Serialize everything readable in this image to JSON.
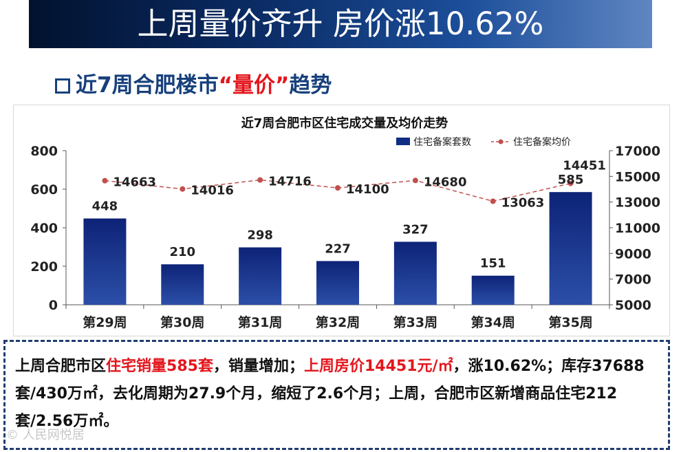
{
  "banner": {
    "title": "上周量价齐升 房价涨10.62%"
  },
  "section": {
    "prefix": "近7周合肥楼市",
    "highlight": "“量价”",
    "suffix": "趋势"
  },
  "chart_data": {
    "type": "bar+line",
    "title": "近7周合肥市区住宅成交量及均价走势",
    "categories": [
      "第29周",
      "第30周",
      "第31周",
      "第32周",
      "第33周",
      "第34周",
      "第35周"
    ],
    "series": [
      {
        "name": "住宅备案套数",
        "type": "bar",
        "axis": "left",
        "values": [
          448,
          210,
          298,
          227,
          327,
          151,
          585
        ],
        "color": "#0f2d82"
      },
      {
        "name": "住宅备案均价",
        "type": "line",
        "axis": "right",
        "values": [
          14663,
          14016,
          14716,
          14100,
          14680,
          13063,
          14451
        ],
        "color": "#c0504d"
      }
    ],
    "y_left": {
      "min": 0,
      "max": 800,
      "ticks": [
        0,
        200,
        400,
        600,
        800
      ]
    },
    "y_right": {
      "min": 5000,
      "max": 17000,
      "ticks": [
        5000,
        7000,
        9000,
        11000,
        13000,
        15000,
        17000
      ]
    },
    "legend_position": "top-right",
    "grid": false
  },
  "note": {
    "p1": "上周合肥市区",
    "h1": "住宅销量585套",
    "p2": "，销量增加；",
    "h2": "上周房价14451元/㎡",
    "p3": "，涨10.62%；库存37688套/430万㎡，去化周期为27.9个月，缩短了2.6个月；上周，合肥市区新增商品住宅212套/2.56万㎡。"
  },
  "watermark": {
    "text": "© 人民网悦居"
  }
}
